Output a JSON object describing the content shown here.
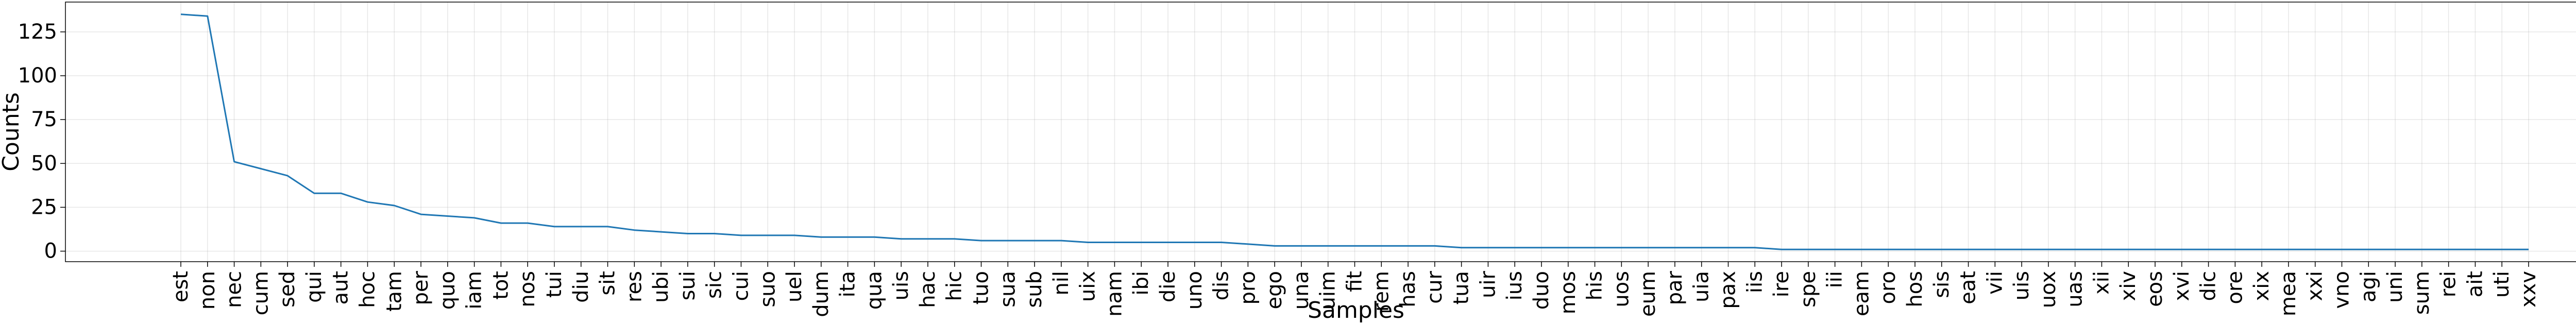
{
  "chart_data": {
    "type": "line",
    "xlabel": "Samples",
    "ylabel": "Counts",
    "ylim": [
      -6,
      142
    ],
    "y_ticks": [
      0,
      25,
      50,
      75,
      100,
      125
    ],
    "grid": true,
    "line_color": "#1f77b4",
    "categories": [
      "est",
      "non",
      "nec",
      "cum",
      "sed",
      "qui",
      "aut",
      "hoc",
      "tam",
      "per",
      "quo",
      "iam",
      "tot",
      "nos",
      "tui",
      "diu",
      "sit",
      "res",
      "ubi",
      "sui",
      "sic",
      "cui",
      "suo",
      "uel",
      "dum",
      "ita",
      "qua",
      "uis",
      "hac",
      "hic",
      "tuo",
      "sua",
      "sub",
      "nil",
      "uix",
      "nam",
      "ibi",
      "die",
      "uno",
      "dis",
      "pro",
      "ego",
      "una",
      "uim",
      "fit",
      "rem",
      "has",
      "cur",
      "tua",
      "uir",
      "ius",
      "duo",
      "mos",
      "his",
      "uos",
      "eum",
      "par",
      "uia",
      "pax",
      "iis",
      "ire",
      "spe",
      "iii",
      "eam",
      "oro",
      "hos",
      "sis",
      "eat",
      "vii",
      "uis",
      "uox",
      "uas",
      "xii",
      "xiv",
      "eos",
      "xvi",
      "dic",
      "ore",
      "xix",
      "mea",
      "xxi",
      "vno",
      "agi",
      "uni",
      "sum",
      "rei",
      "ait",
      "uti",
      "xxv"
    ],
    "values": [
      135,
      134,
      51,
      47,
      43,
      33,
      33,
      28,
      26,
      21,
      20,
      19,
      16,
      16,
      14,
      14,
      14,
      12,
      11,
      10,
      10,
      9,
      9,
      9,
      8,
      8,
      8,
      7,
      7,
      7,
      6,
      6,
      6,
      6,
      5,
      5,
      5,
      5,
      5,
      5,
      4,
      3,
      3,
      3,
      3,
      3,
      3,
      3,
      2,
      2,
      2,
      2,
      2,
      2,
      2,
      2,
      2,
      2,
      2,
      2,
      1,
      1,
      1,
      1,
      1,
      1,
      1,
      1,
      1,
      1,
      1,
      1,
      1,
      1,
      1,
      1,
      1,
      1,
      1,
      1,
      1,
      1,
      1,
      1,
      1,
      1,
      1,
      1,
      1
    ]
  }
}
